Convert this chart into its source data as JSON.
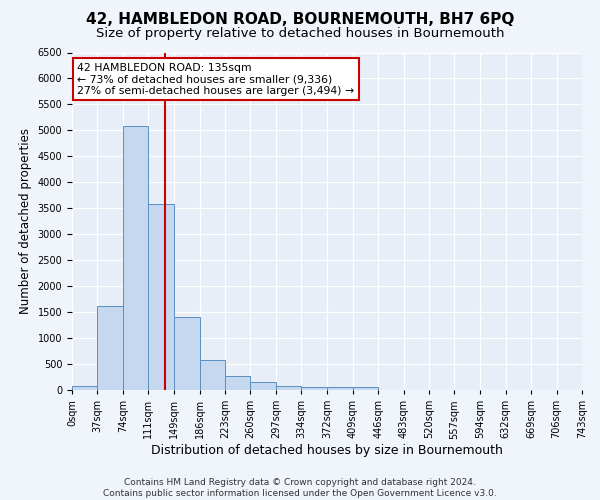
{
  "title": "42, HAMBLEDON ROAD, BOURNEMOUTH, BH7 6PQ",
  "subtitle": "Size of property relative to detached houses in Bournemouth",
  "xlabel": "Distribution of detached houses by size in Bournemouth",
  "ylabel": "Number of detached properties",
  "bin_edges": [
    0,
    37,
    74,
    111,
    149,
    186,
    223,
    260,
    297,
    334,
    372,
    409,
    446,
    483,
    520,
    557,
    594,
    632,
    669,
    706,
    743
  ],
  "bar_heights": [
    75,
    1625,
    5075,
    3575,
    1400,
    575,
    275,
    150,
    75,
    50,
    50,
    50,
    0,
    0,
    0,
    0,
    0,
    0,
    0,
    0
  ],
  "bar_color": "#c5d8f0",
  "bar_edge_color": "#5a8fc3",
  "bg_color": "#e8eef7",
  "fig_bg_color": "#f0f4fb",
  "grid_color": "#ffffff",
  "property_size": 135,
  "vline_color": "#cc0000",
  "annotation_box_color": "#ffffff",
  "annotation_border_color": "#cc0000",
  "annotation_line1": "42 HAMBLEDON ROAD: 135sqm",
  "annotation_line2": "← 73% of detached houses are smaller (9,336)",
  "annotation_line3": "27% of semi-detached houses are larger (3,494) →",
  "ylim": [
    0,
    6500
  ],
  "xlim_min": 0,
  "xlim_max": 743,
  "footer_line1": "Contains HM Land Registry data © Crown copyright and database right 2024.",
  "footer_line2": "Contains public sector information licensed under the Open Government Licence v3.0.",
  "title_fontsize": 11,
  "subtitle_fontsize": 9.5,
  "xlabel_fontsize": 9,
  "ylabel_fontsize": 8.5,
  "tick_fontsize": 7,
  "footer_fontsize": 6.5,
  "annotation_fontsize": 7.8
}
